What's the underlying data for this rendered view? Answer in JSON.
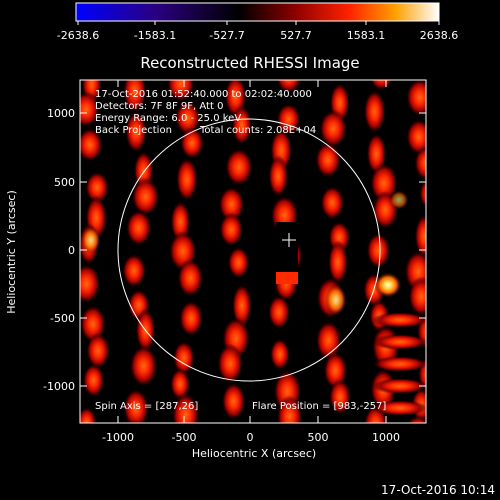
{
  "colorbar": {
    "ticks": [
      "-2638.6",
      "-1583.1",
      "-527.7",
      "527.7",
      "1583.1",
      "2638.6"
    ]
  },
  "image": {
    "title": "Reconstructed RHESSI Image",
    "annotations": [
      "17-Oct-2016 01:52:40.000 to 02:02:40.000",
      "Detectors: 7F 8F 9F, Att 0",
      "Energy Range: 6.0 - 25.0 keV",
      "Back Projection",
      "Total counts: 2.08E+04"
    ],
    "spin_axis": "Spin Axis = [287,26]",
    "flare_position": "Flare Position = [983,-257]",
    "xlabel": "Heliocentric X (arcsec)",
    "ylabel": "Heliocentric Y (arcsec)",
    "x_ticks": [
      "-1000",
      "-500",
      "0",
      "500",
      "1000"
    ],
    "y_ticks": [
      "1000",
      "500",
      "0",
      "-500",
      "-1000"
    ]
  },
  "footer": {
    "timestamp": "17-Oct-2016 10:14"
  },
  "colors": {
    "background": "#000000",
    "foreground": "#ffffff",
    "colormap": [
      "#0000ff",
      "#000000",
      "#ff0000",
      "#ffaa00",
      "#ffffff"
    ]
  }
}
